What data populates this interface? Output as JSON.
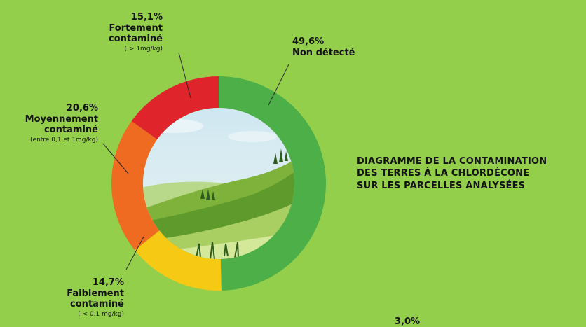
{
  "chart_data": {
    "type": "pie",
    "title_lines": [
      "DIAGRAMME DE LA CONTAMINATION",
      "DES TERRES À LA CHLORDÉCONE",
      "SUR LES PARCELLES ANALYSÉES"
    ],
    "series": [
      {
        "label": "Non détecté",
        "range": "",
        "pct_label": "49,6%",
        "value": 49.6,
        "color": "#4caf48"
      },
      {
        "label": "Faiblement contaminé",
        "range": "( < 0,1 mg/kg)",
        "pct_label": "14,7%",
        "value": 14.7,
        "color": "#f6c915"
      },
      {
        "label": "Moyennement contaminé",
        "range": "(entre 0,1 et 1mg/kg)",
        "pct_label": "20,6%",
        "value": 20.6,
        "color": "#ef6b22"
      },
      {
        "label": "Fortement contaminé",
        "range": "( > 1mg/kg)",
        "pct_label": "15,1%",
        "value": 15.1,
        "color": "#e0242b"
      }
    ],
    "extra_value_label": "3,0%"
  }
}
